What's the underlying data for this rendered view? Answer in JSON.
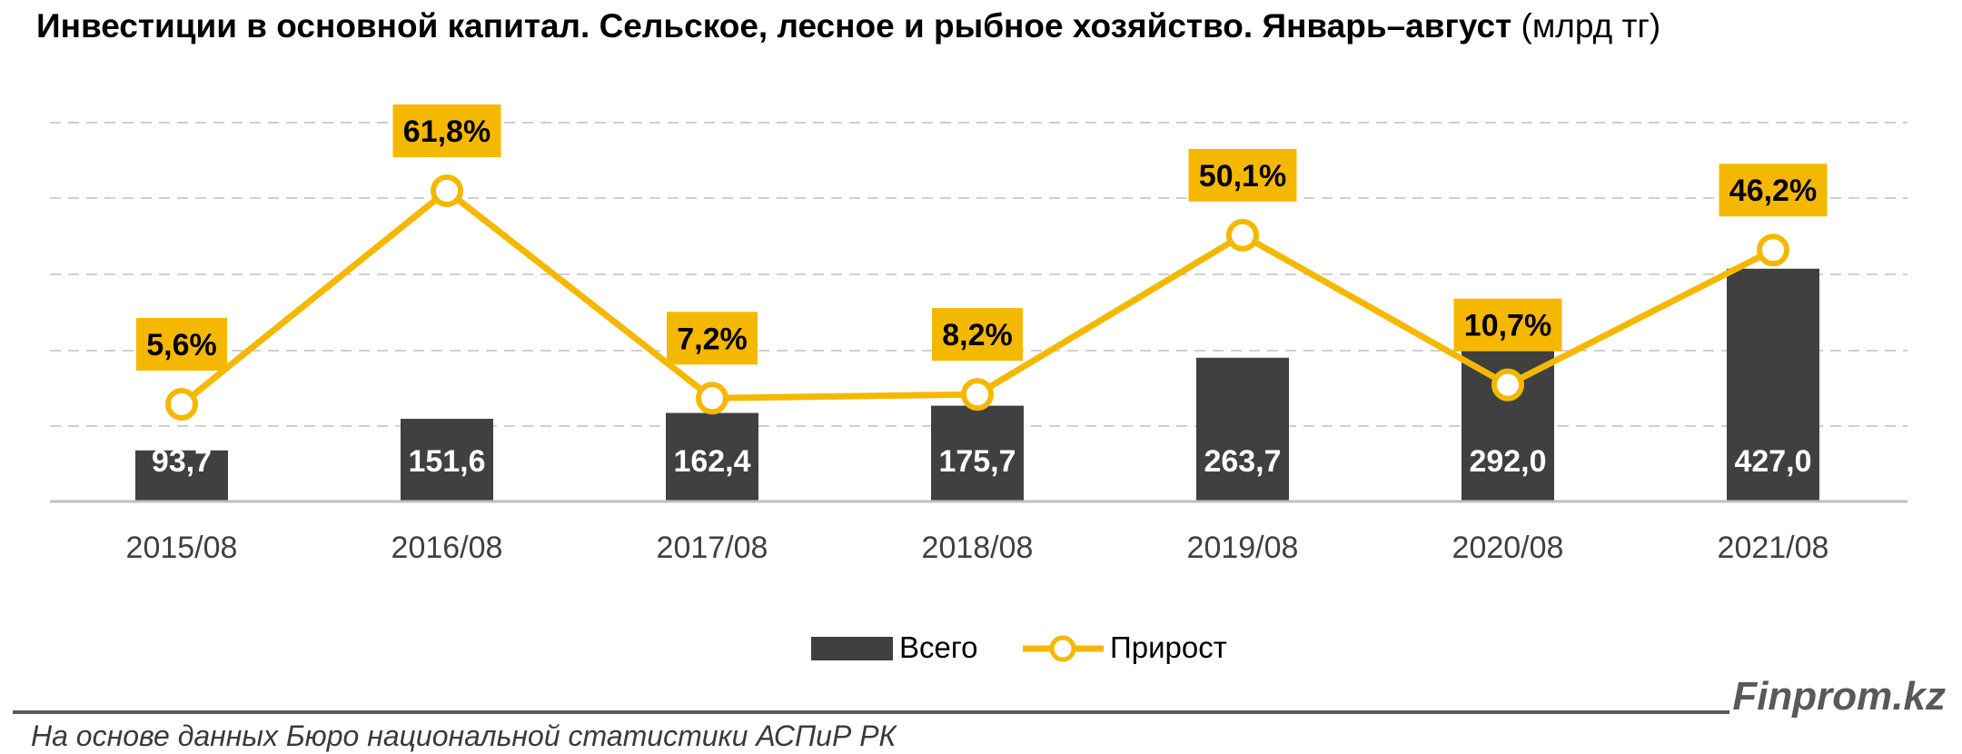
{
  "title": {
    "main": "Инвестиции в основной капитал. Сельское, лесное и рыбное хозяйство. Январь–август",
    "unit": "(млрд тг)"
  },
  "chart_data": {
    "type": "bar",
    "categories": [
      "2015/08",
      "2016/08",
      "2017/08",
      "2018/08",
      "2019/08",
      "2020/08",
      "2021/08"
    ],
    "series": [
      {
        "name": "Всего",
        "type": "bar",
        "color": "#404040",
        "values": [
          93.7,
          151.6,
          162.4,
          175.7,
          263.7,
          292.0,
          427.0
        ],
        "labels": [
          "93,7",
          "151,6",
          "162,4",
          "175,7",
          "263,7",
          "292,0",
          "427,0"
        ]
      },
      {
        "name": "Прирост",
        "type": "line",
        "color": "#F5B800",
        "values": [
          5.6,
          61.8,
          7.2,
          8.2,
          50.1,
          10.7,
          46.2
        ],
        "labels": [
          "5,6%",
          "61,8%",
          "7,2%",
          "8,2%",
          "50,1%",
          "10,7%",
          "46,2%"
        ]
      }
    ],
    "legend": {
      "position": "bottom",
      "entries": [
        "Всего",
        "Прирост"
      ]
    },
    "grid": true
  },
  "footer": {
    "brand": "Finprom.kz",
    "source": "На основе данных Бюро национальной статистики АСПиР РК"
  }
}
